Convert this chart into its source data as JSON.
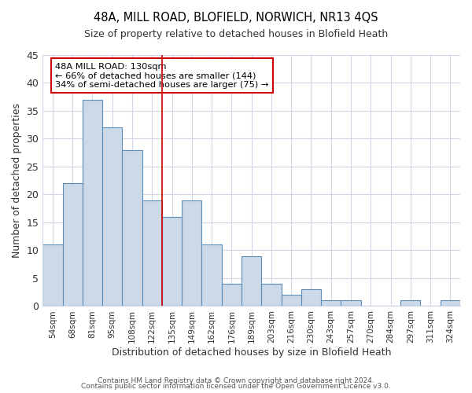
{
  "title": "48A, MILL ROAD, BLOFIELD, NORWICH, NR13 4QS",
  "subtitle": "Size of property relative to detached houses in Blofield Heath",
  "xlabel": "Distribution of detached houses by size in Blofield Heath",
  "ylabel": "Number of detached properties",
  "bar_labels": [
    "54sqm",
    "68sqm",
    "81sqm",
    "95sqm",
    "108sqm",
    "122sqm",
    "135sqm",
    "149sqm",
    "162sqm",
    "176sqm",
    "189sqm",
    "203sqm",
    "216sqm",
    "230sqm",
    "243sqm",
    "257sqm",
    "270sqm",
    "284sqm",
    "297sqm",
    "311sqm",
    "324sqm"
  ],
  "bar_values": [
    11,
    22,
    37,
    32,
    28,
    19,
    16,
    19,
    11,
    4,
    9,
    4,
    2,
    3,
    1,
    1,
    0,
    0,
    1,
    0,
    1
  ],
  "bar_color": "#ccd9e8",
  "bar_edge_color": "#5b8db8",
  "property_line_x": 5.5,
  "annotation_title": "48A MILL ROAD: 130sqm",
  "annotation_line1": "← 66% of detached houses are smaller (144)",
  "annotation_line2": "34% of semi-detached houses are larger (75) →",
  "annotation_box_color": "#cc0000",
  "grid_color": "#d0d8e8",
  "ylim": [
    0,
    45
  ],
  "yticks": [
    0,
    5,
    10,
    15,
    20,
    25,
    30,
    35,
    40,
    45
  ],
  "footer1": "Contains HM Land Registry data © Crown copyright and database right 2024.",
  "footer2": "Contains public sector information licensed under the Open Government Licence v3.0."
}
